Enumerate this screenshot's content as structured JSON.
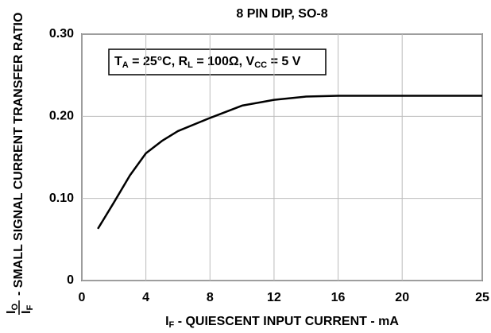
{
  "chart_data": {
    "type": "line",
    "title": "8 PIN DIP, SO-8",
    "annotation": [
      "T",
      "A",
      " = 25°C, R",
      "L",
      " = 100Ω, V",
      "CC",
      " = 5 V"
    ],
    "xlabel": [
      "I",
      "F",
      " - QUIESCENT INPUT CURRENT - mA"
    ],
    "ylabel": {
      "numerator": [
        "I",
        "O"
      ],
      "denominator": [
        "I",
        "F"
      ],
      "text": "- SMALL SIGNAL CURRENT TRANSFER RATIO"
    },
    "x": [
      1,
      2,
      3,
      4,
      5,
      6,
      8,
      10,
      12,
      14,
      16,
      20,
      25
    ],
    "series": [
      {
        "color": "#000000",
        "values": [
          0.063,
          0.095,
          0.128,
          0.155,
          0.17,
          0.182,
          0.198,
          0.213,
          0.22,
          0.224,
          0.225,
          0.225,
          0.225
        ]
      }
    ],
    "xlim": [
      0,
      25
    ],
    "xticks": [
      0,
      4,
      8,
      12,
      16,
      20,
      25
    ],
    "ylim": [
      0,
      0.3
    ],
    "yticks": [
      0,
      {
        "value": 0.1,
        "label": "0.10"
      },
      {
        "value": 0.2,
        "label": "0.20"
      },
      {
        "value": 0.3,
        "label": "0.30"
      }
    ],
    "grid": true
  }
}
